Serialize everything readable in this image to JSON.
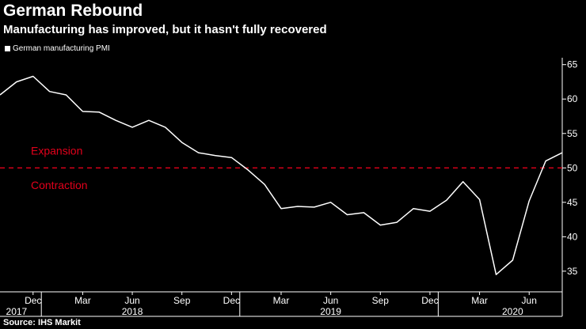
{
  "header": {
    "title": "German Rebound",
    "subtitle": "Manufacturing has improved, but it hasn't fully recovered"
  },
  "source": "Source: IHS Markit",
  "colors": {
    "background": "#000000",
    "line": "#ffffff",
    "threshold": "#e3001b",
    "annotation": "#e3001b"
  },
  "chart_data": {
    "type": "line",
    "title": "German Rebound",
    "subtitle": "Manufacturing has improved, but it hasn't fully recovered",
    "legend": [
      "German manufacturing PMI"
    ],
    "legend_position": "top-left",
    "ylim": [
      32,
      66
    ],
    "y_ticks": [
      35,
      40,
      45,
      50,
      55,
      60,
      65
    ],
    "y_axis_side": "right",
    "x_month_ticks": [
      {
        "label": "Dec",
        "index": 2
      },
      {
        "label": "Mar",
        "index": 5
      },
      {
        "label": "Jun",
        "index": 8
      },
      {
        "label": "Sep",
        "index": 11
      },
      {
        "label": "Dec",
        "index": 14
      },
      {
        "label": "Mar",
        "index": 17
      },
      {
        "label": "Jun",
        "index": 20
      },
      {
        "label": "Sep",
        "index": 23
      },
      {
        "label": "Dec",
        "index": 26
      },
      {
        "label": "Mar",
        "index": 29
      },
      {
        "label": "Jun",
        "index": 32
      }
    ],
    "x_year_labels": [
      {
        "label": "2017",
        "index": 1
      },
      {
        "label": "2018",
        "index": 8
      },
      {
        "label": "2019",
        "index": 20
      },
      {
        "label": "2020",
        "index": 31
      }
    ],
    "x_year_dividers": [
      2.5,
      14.5,
      26.5
    ],
    "months": [
      "Oct 2017",
      "Nov 2017",
      "Dec 2017",
      "Jan 2018",
      "Feb 2018",
      "Mar 2018",
      "Apr 2018",
      "May 2018",
      "Jun 2018",
      "Jul 2018",
      "Aug 2018",
      "Sep 2018",
      "Oct 2018",
      "Nov 2018",
      "Dec 2018",
      "Jan 2019",
      "Feb 2019",
      "Mar 2019",
      "Apr 2019",
      "May 2019",
      "Jun 2019",
      "Jul 2019",
      "Aug 2019",
      "Sep 2019",
      "Oct 2019",
      "Nov 2019",
      "Dec 2019",
      "Jan 2020",
      "Feb 2020",
      "Mar 2020",
      "Apr 2020",
      "May 2020",
      "Jun 2020",
      "Jul 2020",
      "Aug 2020"
    ],
    "series": [
      {
        "name": "German manufacturing PMI",
        "values": [
          60.6,
          62.5,
          63.3,
          61.1,
          60.6,
          58.2,
          58.1,
          56.9,
          55.9,
          56.9,
          55.9,
          53.7,
          52.2,
          51.8,
          51.5,
          49.7,
          47.6,
          44.1,
          44.4,
          44.3,
          45.0,
          43.2,
          43.5,
          41.7,
          42.1,
          44.1,
          43.7,
          45.3,
          48.0,
          45.4,
          34.5,
          36.6,
          45.2,
          51.0,
          52.2
        ]
      }
    ],
    "reference_line": {
      "value": 50,
      "style": "dashed"
    },
    "annotations": [
      {
        "text": "Expansion",
        "at_value": 52.5
      },
      {
        "text": "Contraction",
        "at_value": 47.5
      }
    ]
  }
}
